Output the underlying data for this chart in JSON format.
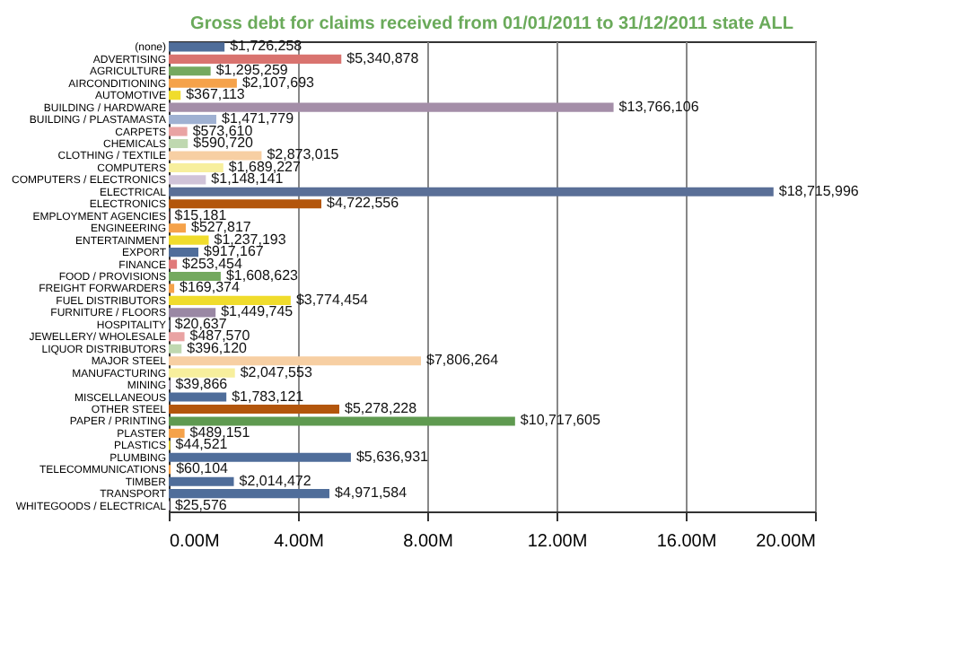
{
  "chart_data": {
    "type": "bar",
    "orientation": "horizontal",
    "title": "Gross debt for claims received from 01/01/2011 to 31/12/2011 state ALL",
    "categories": [
      "(none)",
      "ADVERTISING",
      "AGRICULTURE",
      "AIRCONDITIONING",
      "AUTOMOTIVE",
      "BUILDING / HARDWARE",
      "BUILDING / PLASTAMASTA",
      "CARPETS",
      "CHEMICALS",
      "CLOTHING / TEXTILE",
      "COMPUTERS",
      "COMPUTERS / ELECTRONICS",
      "ELECTRICAL",
      "ELECTRONICS",
      "EMPLOYMENT AGENCIES",
      "ENGINEERING",
      "ENTERTAINMENT",
      "EXPORT",
      "FINANCE",
      "FOOD / PROVISIONS",
      "FREIGHT FORWARDERS",
      "FUEL DISTRIBUTORS",
      "FURNITURE / FLOORS",
      "HOSPITALITY",
      "JEWELLERY/ WHOLESALE",
      "LIQUOR DISTRIBUTORS",
      "MAJOR STEEL",
      "MANUFACTURING",
      "MINING",
      "MISCELLANEOUS",
      "OTHER STEEL",
      "PAPER / PRINTING",
      "PLASTER",
      "PLASTICS",
      "PLUMBING",
      "TELECOMMUNICATIONS",
      "TIMBER",
      "TRANSPORT",
      "WHITEGOODS / ELECTRICAL"
    ],
    "values": [
      1726258,
      5340878,
      1295259,
      2107693,
      367113,
      13766106,
      1471779,
      573610,
      590720,
      2873015,
      1689227,
      1148141,
      18715996,
      4722556,
      15181,
      527817,
      1237193,
      917167,
      253454,
      1608623,
      169374,
      3774454,
      1449745,
      20637,
      487570,
      396120,
      7806264,
      2047553,
      39866,
      1783121,
      5278228,
      10717605,
      489151,
      44521,
      5636931,
      60104,
      2014472,
      4971584,
      25576
    ],
    "value_labels": [
      "$1,726,258",
      "$5,340,878",
      "$1,295,259",
      "$2,107,693",
      "$367,113",
      "$13,766,106",
      "$1,471,779",
      "$573,610",
      "$590,720",
      "$2,873,015",
      "$1,689,227",
      "$1,148,141",
      "$18,715,996",
      "$4,722,556",
      "$15,181",
      "$527,817",
      "$1,237,193",
      "$917,167",
      "$253,454",
      "$1,608,623",
      "$169,374",
      "$3,774,454",
      "$1,449,745",
      "$20,637",
      "$487,570",
      "$396,120",
      "$7,806,264",
      "$2,047,553",
      "$39,866",
      "$1,783,121",
      "$5,278,228",
      "$10,717,605",
      "$489,151",
      "$44,521",
      "$5,636,931",
      "$60,104",
      "$2,014,472",
      "$4,971,584",
      "$25,576"
    ],
    "colors": [
      "#4f6d9a",
      "#d9736f",
      "#74a95f",
      "#f5a24a",
      "#f0dc2c",
      "#a48ea8",
      "#9fb1d2",
      "#e9a3a3",
      "#bfd8b0",
      "#f7cfa3",
      "#f7ef9d",
      "#d0c3d8",
      "#5a6f97",
      "#b3560c",
      "#d9736f",
      "#f5a24a",
      "#f0dc2c",
      "#4f6d9a",
      "#e07a7a",
      "#74a95f",
      "#f5a24a",
      "#f0dc2c",
      "#9a88a4",
      "#9fb1d2",
      "#e9a3a3",
      "#bfd8b0",
      "#f7cfa3",
      "#f7ef9d",
      "#d0c3d8",
      "#4f6d9a",
      "#b3560c",
      "#5f9a50",
      "#f5a24a",
      "#f0dc2c",
      "#4f6d9a",
      "#f5a24a",
      "#4f6d9a",
      "#4f6d9a",
      "#d0c3d8"
    ],
    "xlim": [
      0,
      20000000
    ],
    "xticks": [
      {
        "value": 0,
        "label": "0.00M"
      },
      {
        "value": 4000000,
        "label": "4.00M"
      },
      {
        "value": 8000000,
        "label": "8.00M"
      },
      {
        "value": 12000000,
        "label": "12.00M"
      },
      {
        "value": 16000000,
        "label": "16.00M"
      },
      {
        "value": 20000000,
        "label": "20.00M"
      }
    ],
    "grid": "x"
  }
}
